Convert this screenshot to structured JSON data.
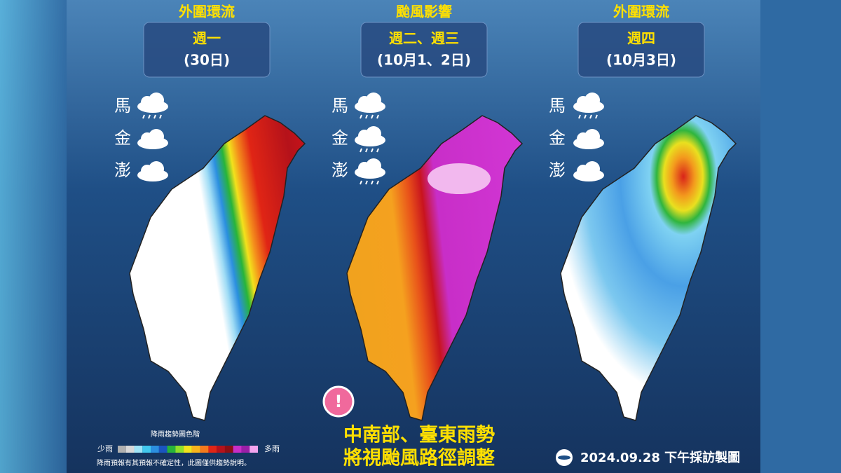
{
  "panels": [
    {
      "label": "外圍環流",
      "day": "週一",
      "date": "(30日)",
      "islands": [
        "馬",
        "金",
        "澎"
      ]
    },
    {
      "label": "颱風影響",
      "day": "週二、週三",
      "date": "(10月1、2日)",
      "islands": [
        "馬",
        "金",
        "澎"
      ]
    },
    {
      "label": "外圍環流",
      "day": "週四",
      "date": "(10月3日)",
      "islands": [
        "馬",
        "金",
        "澎"
      ]
    }
  ],
  "legend": {
    "title": "降雨趨勢圖色階",
    "low": "少雨",
    "high": "多雨",
    "note": "降雨預報有其預報不確定性，此圖僅供趨勢說明。"
  },
  "notice": {
    "icon": "!",
    "lines": [
      "中南部、臺東雨勢",
      "將視颱風路徑調整"
    ]
  },
  "credit": "2024.09.28 下午採訪製圖"
}
